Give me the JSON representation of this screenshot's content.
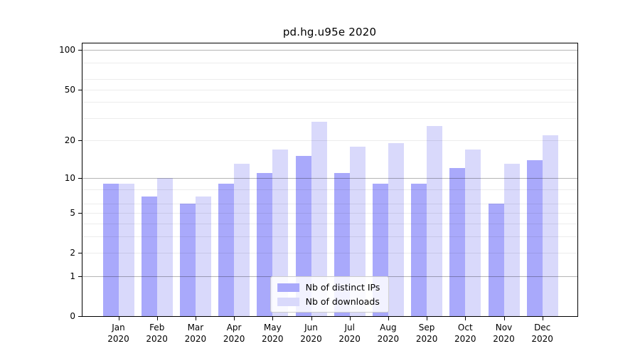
{
  "title": "pd.hg.u95e 2020",
  "chart_data": {
    "type": "bar",
    "title": "pd.hg.u95e 2020",
    "categories": [
      "Jan",
      "Feb",
      "Mar",
      "Apr",
      "May",
      "Jun",
      "Jul",
      "Aug",
      "Sep",
      "Oct",
      "Nov",
      "Dec"
    ],
    "category_year": "2020",
    "series": [
      {
        "name": "Nb of distinct IPs",
        "color": "#a9a9fb",
        "values": [
          9,
          7,
          6,
          9,
          11,
          15,
          11,
          9,
          9,
          12,
          6,
          14
        ]
      },
      {
        "name": "Nb of downloads",
        "color": "#d9d9fb",
        "values": [
          9,
          10,
          7,
          13,
          17,
          28,
          18,
          19,
          26,
          17,
          13,
          22
        ]
      }
    ],
    "yscale": "log1p",
    "ylim": [
      0,
      113.7
    ],
    "yticks": [
      100,
      50,
      20,
      10,
      5,
      2,
      1,
      0
    ],
    "gridlines_major": [
      1,
      10,
      100
    ],
    "gridlines_minor": [
      2,
      3,
      4,
      5,
      6,
      8,
      20,
      30,
      40,
      50,
      60,
      80
    ],
    "grid": true,
    "legend_position": "lower center"
  },
  "colors": {
    "bar_distinct_ips": "#a9a9fb",
    "bar_downloads": "#d9d9fb",
    "grid_major": "#b5b5b5",
    "grid_minor": "#ececec",
    "axis": "#000000",
    "background": "#ffffff",
    "legend_border": "#cccccc"
  }
}
